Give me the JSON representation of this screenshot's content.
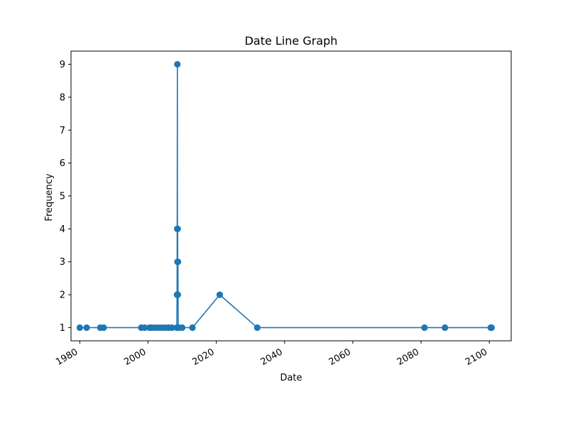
{
  "chart_data": {
    "type": "line",
    "title": "Date Line Graph",
    "xlabel": "Date",
    "ylabel": "Frequency",
    "x_is_date": true,
    "xlim": [
      "1977-06-01",
      "2106-06-01"
    ],
    "ylim": [
      0.6,
      9.4
    ],
    "x_ticks": [
      "1980",
      "2000",
      "2020",
      "2040",
      "2060",
      "2080",
      "2100"
    ],
    "y_ticks": [
      "1",
      "2",
      "3",
      "4",
      "5",
      "6",
      "7",
      "8",
      "9"
    ],
    "grid": false,
    "legend": "none",
    "series": [
      {
        "color": "#1f77b4",
        "marker": "circle",
        "points": [
          {
            "x": "1980-01-01",
            "y": 1
          },
          {
            "x": "1982-01-01",
            "y": 1
          },
          {
            "x": "1986-01-01",
            "y": 1
          },
          {
            "x": "1987-01-01",
            "y": 1
          },
          {
            "x": "1998-01-01",
            "y": 1
          },
          {
            "x": "1999-01-01",
            "y": 1
          },
          {
            "x": "2000-06-01",
            "y": 1
          },
          {
            "x": "2001-01-01",
            "y": 1
          },
          {
            "x": "2002-01-01",
            "y": 1
          },
          {
            "x": "2003-01-01",
            "y": 1
          },
          {
            "x": "2004-01-01",
            "y": 1
          },
          {
            "x": "2005-01-01",
            "y": 1
          },
          {
            "x": "2006-01-01",
            "y": 1
          },
          {
            "x": "2007-01-01",
            "y": 1
          },
          {
            "x": "2008-06-01",
            "y": 1
          },
          {
            "x": "2008-07-01",
            "y": 2
          },
          {
            "x": "2008-07-15",
            "y": 4
          },
          {
            "x": "2008-08-01",
            "y": 9
          },
          {
            "x": "2008-08-15",
            "y": 3
          },
          {
            "x": "2008-09-01",
            "y": 4
          },
          {
            "x": "2008-09-15",
            "y": 2
          },
          {
            "x": "2008-10-01",
            "y": 3
          },
          {
            "x": "2008-11-01",
            "y": 1
          },
          {
            "x": "2009-01-01",
            "y": 1
          },
          {
            "x": "2010-01-01",
            "y": 1
          },
          {
            "x": "2013-01-01",
            "y": 1
          },
          {
            "x": "2021-01-01",
            "y": 2
          },
          {
            "x": "2032-01-01",
            "y": 1
          },
          {
            "x": "2081-01-01",
            "y": 1
          },
          {
            "x": "2087-01-01",
            "y": 1
          },
          {
            "x": "2100-06-01",
            "y": 1
          },
          {
            "x": "2100-09-01",
            "y": 1
          }
        ]
      }
    ]
  }
}
